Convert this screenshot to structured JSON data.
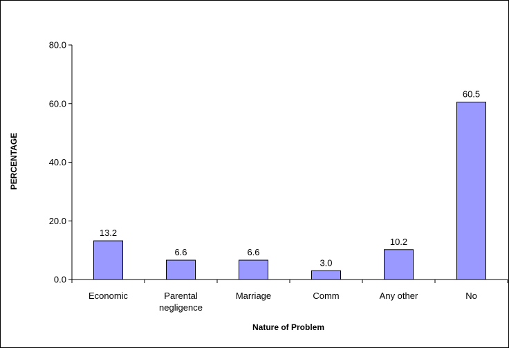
{
  "chart_data": {
    "type": "bar",
    "categories": [
      [
        "Economic"
      ],
      [
        "Parental",
        "negligence"
      ],
      [
        "Marriage"
      ],
      [
        "Comm"
      ],
      [
        "Any other"
      ],
      [
        "No"
      ]
    ],
    "values": [
      13.2,
      6.6,
      6.6,
      3.0,
      10.2,
      60.5
    ],
    "value_labels": [
      "13.2",
      "6.6",
      "6.6",
      "3.0",
      "10.2",
      "60.5"
    ],
    "y_ticks": [
      "0.0",
      "20.0",
      "40.0",
      "60.0",
      "80.0"
    ],
    "y_tick_values": [
      0,
      20,
      40,
      60,
      80
    ],
    "ylim": [
      0,
      80
    ],
    "xlabel": "Nature of Problem",
    "ylabel": "PERCENTAGE",
    "grid": false,
    "legend": "none",
    "colors": {
      "bar_fill": "#9999ff",
      "bar_stroke": "#000000",
      "axis": "#000000",
      "border": "#000000"
    }
  }
}
